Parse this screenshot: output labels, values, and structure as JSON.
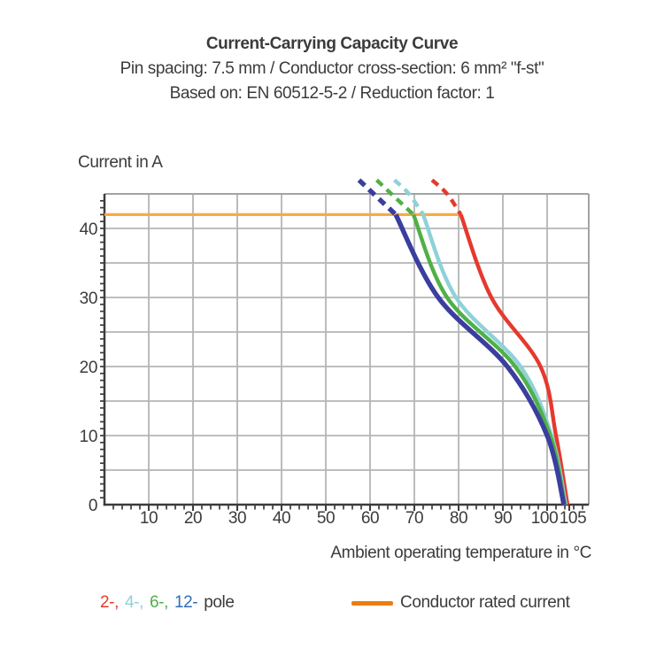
{
  "header": {
    "title": "Current-Carrying Capacity Curve",
    "subtitle1": "Pin spacing: 7.5 mm / Conductor cross-section: 6 mm² \"f-st\"",
    "subtitle2": "Based on: EN 60512-5-2 / Reduction factor: 1"
  },
  "chart_data": {
    "type": "line",
    "title": "Current-Carrying Capacity Curve",
    "xlabel": "Ambient operating temperature in °C",
    "ylabel": "Current in A",
    "xlim": [
      0,
      109.4
    ],
    "ylim": [
      0,
      45
    ],
    "x_major_ticks": [
      10,
      20,
      30,
      40,
      50,
      60,
      70,
      80,
      90,
      100,
      105
    ],
    "x_grid_lines": [
      10,
      20,
      30,
      40,
      50,
      60,
      70,
      80,
      90,
      100
    ],
    "x_minor_tick_step": 2,
    "y_major_ticks": [
      0,
      10,
      20,
      30,
      40
    ],
    "y_grid_step": 5,
    "y_minor_tick_step": 1,
    "grid": true,
    "legend_position": "bottom",
    "dashed_above_a": 42,
    "rated_current_line": {
      "label": "Conductor rated current",
      "value_a": 42,
      "x_start_c": 0,
      "x_end_c": 80.5,
      "color": "#fbaa42",
      "stroke_width": 3.2
    },
    "series": [
      {
        "name": "2-pole",
        "color": "#e6392e",
        "stroke_width": 4.4,
        "points_c_a": [
          [
            74.0,
            47
          ],
          [
            77.4,
            45
          ],
          [
            80.5,
            42
          ],
          [
            87.4,
            30
          ],
          [
            98.5,
            20
          ],
          [
            102.0,
            10
          ],
          [
            104.6,
            0
          ]
        ]
      },
      {
        "name": "4-pole",
        "color": "#8fd1d8",
        "stroke_width": 4.4,
        "points_c_a": [
          [
            65.5,
            47
          ],
          [
            68.8,
            45
          ],
          [
            72.0,
            42
          ],
          [
            79.4,
            30
          ],
          [
            94.0,
            20
          ],
          [
            101.0,
            10
          ],
          [
            104.2,
            0
          ]
        ]
      },
      {
        "name": "6-pole",
        "color": "#4fb046",
        "stroke_width": 4.4,
        "points_c_a": [
          [
            61.5,
            47
          ],
          [
            64.8,
            45
          ],
          [
            69.8,
            42
          ],
          [
            77.4,
            30
          ],
          [
            92.8,
            20
          ],
          [
            100.7,
            10
          ],
          [
            104.0,
            0
          ]
        ]
      },
      {
        "name": "12-pole",
        "color": "#3a3e9e",
        "stroke_width": 5.4,
        "points_c_a": [
          [
            57.5,
            47
          ],
          [
            60.8,
            45
          ],
          [
            65.8,
            42
          ],
          [
            75.4,
            30
          ],
          [
            91.0,
            20
          ],
          [
            100.0,
            10
          ],
          [
            103.8,
            0
          ]
        ]
      }
    ]
  },
  "legend": {
    "pole_items": [
      {
        "label": "2-,",
        "color": "#e6392e"
      },
      {
        "label": "4-,",
        "color": "#8fd1d8"
      },
      {
        "label": "6-,",
        "color": "#4fb046"
      },
      {
        "label": "12-",
        "color": "#2f6db8"
      }
    ],
    "pole_suffix": "pole",
    "rated_label": "Conductor rated current",
    "rated_swatch_color": "#ee7d11"
  },
  "colors": {
    "text": "#3b3b3a",
    "grid": "#b5b5b5",
    "axis": "#3c3c3b",
    "border": "#a3a3a3"
  }
}
